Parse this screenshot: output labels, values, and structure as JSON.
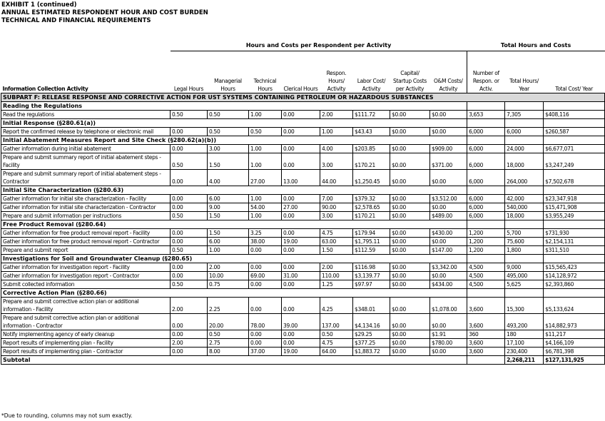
{
  "header": {
    "lines": [
      "EXHIBIT 1 (continued)",
      "ANNUAL ESTIMATED RESPONDENT HOUR AND COST BURDEN",
      "TECHNICAL AND FINANCIAL REQUIREMENTS"
    ]
  },
  "table": {
    "group_headers": [
      "Hours and Costs per Respondent per Activity",
      "Total Hours and Costs"
    ],
    "columns": [
      "Information Collection Activity",
      "Legal Hours",
      "Managerial Hours",
      "Technical Hours",
      "Clerical Hours",
      "Respon. Hours/ Activity",
      "Labor Cost/ Activity",
      "Capital/ Startup Costs per Activity",
      "O&M Costs/ Activity",
      "Number of Respon. or Activ.",
      "Total Hours/ Year",
      "Total Cost/ Year"
    ],
    "subpart": "SUBPART F: RELEASE RESPONSE AND CORRECTIVE ACTION FOR UST SYSTEMS CONTAINING PETROLEUM OR HAZARDOUS SUBSTANCES",
    "sections": [
      {
        "title": "Reading the Regulations",
        "rows": [
          [
            "Read the regulations",
            "0.50",
            "0.50",
            "1.00",
            "0.00",
            "2.00",
            "$111.72",
            "$0.00",
            "$0.00",
            "3,653",
            "7,305",
            "$408,116"
          ]
        ]
      },
      {
        "title": "Initial Response (§280.61(a))",
        "rows": [
          [
            "Report the confirmed release by telephone or electronic mail",
            "0.00",
            "0.50",
            "0.50",
            "0.00",
            "1.00",
            "$43.43",
            "$0.00",
            "$0.00",
            "6,000",
            "6,000",
            "$260,587"
          ]
        ]
      },
      {
        "title": "Initial Abatement Measures Report and Site Check (§280.62(a)(b))",
        "rows": [
          [
            "Gather information during initial abatement",
            "0.00",
            "3.00",
            "1.00",
            "0.00",
            "4.00",
            "$203.85",
            "$0.00",
            "$909.00",
            "6,000",
            "24,000",
            "$6,677,071"
          ],
          [
            "Prepare and submit summary report of initial abatement steps - Facility",
            "0.50",
            "1.50",
            "1.00",
            "0.00",
            "3.00",
            "$170.21",
            "$0.00",
            "$371.00",
            "6,000",
            "18,000",
            "$3,247,249"
          ],
          [
            "Prepare and submit summary report of initial abatement steps - Contractor",
            "0.00",
            "4.00",
            "27.00",
            "13.00",
            "44.00",
            "$1,250.45",
            "$0.00",
            "$0.00",
            "6,000",
            "264,000",
            "$7,502,678"
          ]
        ]
      },
      {
        "title": "Initial Site Characterization (§280.63)",
        "rows": [
          [
            "Gather information for initial site characterization - Facility",
            "0.00",
            "6.00",
            "1.00",
            "0.00",
            "7.00",
            "$379.32",
            "$0.00",
            "$3,512.00",
            "6,000",
            "42,000",
            "$23,347,918"
          ],
          [
            "Gather information for initial site characterization - Contractor",
            "0.00",
            "9.00",
            "54.00",
            "27.00",
            "90.00",
            "$2,578.65",
            "$0.00",
            "$0.00",
            "6,000",
            "540,000",
            "$15,471,908"
          ],
          [
            "Prepare and submit information per instructions",
            "0.50",
            "1.50",
            "1.00",
            "0.00",
            "3.00",
            "$170.21",
            "$0.00",
            "$489.00",
            "6,000",
            "18,000",
            "$3,955,249"
          ]
        ]
      },
      {
        "title": "Free Product Removal (§280.64)",
        "rows": [
          [
            "Gather information for free product removal report - Facility",
            "0.00",
            "1.50",
            "3.25",
            "0.00",
            "4.75",
            "$179.94",
            "$0.00",
            "$430.00",
            "1,200",
            "5,700",
            "$731,930"
          ],
          [
            "Gather information for free product removal report - Contractor",
            "0.00",
            "6.00",
            "38.00",
            "19.00",
            "63.00",
            "$1,795.11",
            "$0.00",
            "$0.00",
            "1,200",
            "75,600",
            "$2,154,131"
          ],
          [
            "Prepare and submit report",
            "0.50",
            "1.00",
            "0.00",
            "0.00",
            "1.50",
            "$112.59",
            "$0.00",
            "$147.00",
            "1,200",
            "1,800",
            "$311,510"
          ]
        ]
      },
      {
        "title": "Investigations for Soil and Groundwater Cleanup (§280.65)",
        "rows": [
          [
            "Gather information for investigation report - Facility",
            "0.00",
            "2.00",
            "0.00",
            "0.00",
            "2.00",
            "$116.98",
            "$0.00",
            "$3,342.00",
            "4,500",
            "9,000",
            "$15,565,423"
          ],
          [
            "Gather information for investigation report - Contractor",
            "0.00",
            "10.00",
            "69.00",
            "31.00",
            "110.00",
            "$3,139.77",
            "$0.00",
            "$0.00",
            "4,500",
            "495,000",
            "$14,128,972"
          ],
          [
            "Submit collected information",
            "0.50",
            "0.75",
            "0.00",
            "0.00",
            "1.25",
            "$97.97",
            "$0.00",
            "$434.00",
            "4,500",
            "5,625",
            "$2,393,860"
          ]
        ]
      },
      {
        "title": "Corrective Action Plan (§280.66)",
        "rows": [
          [
            "Prepare and submit corrective action plan or additional information - Facility",
            "2.00",
            "2.25",
            "0.00",
            "0.00",
            "4.25",
            "$348.01",
            "$0.00",
            "$1,078.00",
            "3,600",
            "15,300",
            "$5,133,624"
          ],
          [
            "Prepare and submit corrective action plan or additional information - Contractor",
            "0.00",
            "20.00",
            "78.00",
            "39.00",
            "137.00",
            "$4,134.16",
            "$0.00",
            "$0.00",
            "3,600",
            "493,200",
            "$14,882,973"
          ],
          [
            "Notify implementing agency of early cleanup",
            "0.00",
            "0.50",
            "0.00",
            "0.00",
            "0.50",
            "$29.25",
            "$0.00",
            "$1.91",
            "360",
            "180",
            "$11,217"
          ],
          [
            "Report results of implementing plan - Facility",
            "2.00",
            "2.75",
            "0.00",
            "0.00",
            "4.75",
            "$377.25",
            "$0.00",
            "$780.00",
            "3,600",
            "17,100",
            "$4,166,109"
          ],
          [
            "Report results of implementing plan - Contractor",
            "0.00",
            "8.00",
            "37.00",
            "19.00",
            "64.00",
            "$1,883.72",
            "$0.00",
            "$0.00",
            "3,600",
            "230,400",
            "$6,781,398"
          ]
        ]
      }
    ],
    "subtotal": {
      "label": "Subtotal",
      "total_hours": "2,268,211",
      "total_cost": "$127,131,925"
    }
  },
  "footnote": "*Due to rounding, columns may not sum exactly."
}
